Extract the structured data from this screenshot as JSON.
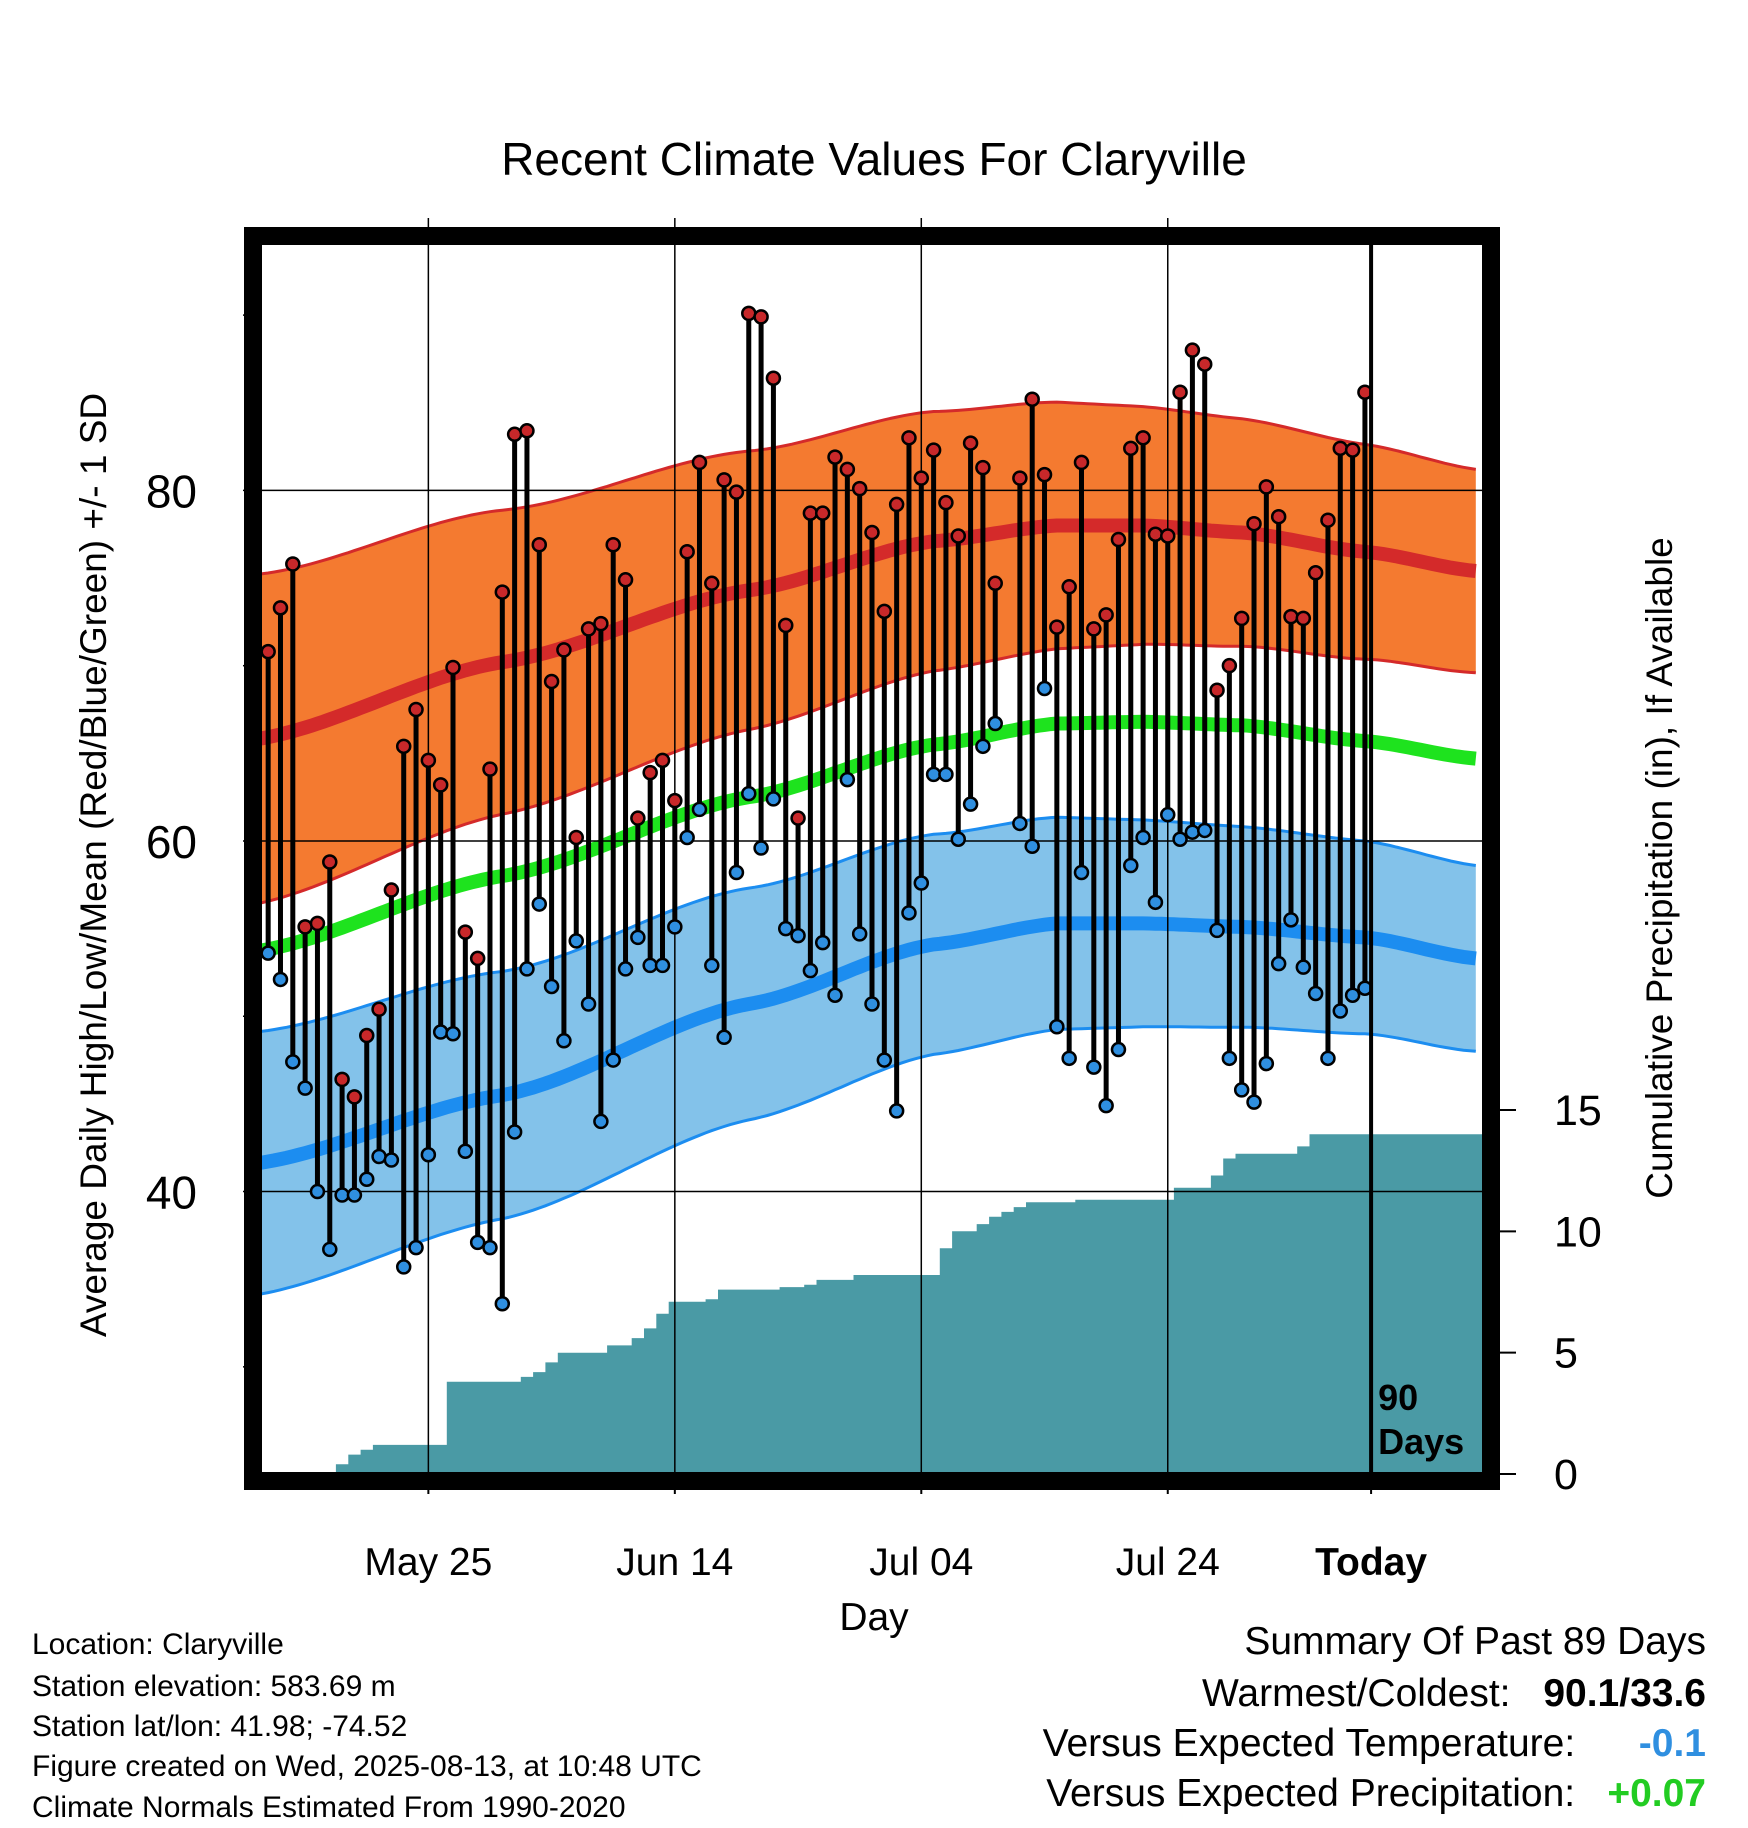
{
  "chart_data": {
    "type": "line",
    "title": "Recent Climate Values For Claryville",
    "xlabel": "Day",
    "ylabel": "Average Daily High/Low/Mean (Red/Blue/Green) +/- 1 SD",
    "y2label": "Cumulative Precipitation (in), If Available",
    "x_tick_labels": [
      "May 25",
      "Jun 14",
      "Jul 04",
      "Jul 24",
      "Today"
    ],
    "y_tick_labels": [
      "40",
      "60",
      "80"
    ],
    "y2_tick_labels": [
      "0",
      "5",
      "10",
      "15"
    ],
    "ylim": [
      24,
      94
    ],
    "y2lim": [
      0,
      48
    ],
    "today_label": "90\nDays",
    "x_start": "2025-05-14",
    "days_shown": 100,
    "today_index": 90,
    "colors": {
      "high_band": "#f47a30",
      "high_band_edge": "#d42a2a",
      "high_mean": "#d42a2a",
      "low_band": "#83c2ea",
      "low_band_edge": "#1c8df0",
      "low_mean": "#1c8df0",
      "mean": "#1ee31e",
      "precip": "#4a9aa5",
      "high_dot": "#c8282a",
      "low_dot": "#2f8fe0"
    },
    "normal_high_anchors": [
      [
        0,
        65.8
      ],
      [
        20,
        70.2
      ],
      [
        40,
        74.3
      ],
      [
        55,
        77.1
      ],
      [
        65,
        78.0
      ],
      [
        72,
        78.0
      ],
      [
        80,
        77.6
      ],
      [
        90,
        76.5
      ],
      [
        99,
        75.4
      ]
    ],
    "normal_mean_anchors": [
      [
        0,
        53.7
      ],
      [
        20,
        58.0
      ],
      [
        40,
        62.5
      ],
      [
        55,
        65.5
      ],
      [
        65,
        66.7
      ],
      [
        72,
        66.8
      ],
      [
        80,
        66.6
      ],
      [
        90,
        65.7
      ],
      [
        99,
        64.7
      ]
    ],
    "normal_low_anchors": [
      [
        0,
        41.6
      ],
      [
        20,
        45.5
      ],
      [
        40,
        50.7
      ],
      [
        55,
        54.1
      ],
      [
        65,
        55.3
      ],
      [
        72,
        55.3
      ],
      [
        80,
        55.1
      ],
      [
        90,
        54.5
      ],
      [
        99,
        53.3
      ]
    ],
    "sd_high": [
      [
        0,
        9.4
      ],
      [
        99,
        5.8
      ]
    ],
    "sd_low": [
      [
        0,
        7.5
      ],
      [
        99,
        5.3
      ]
    ],
    "observed": {
      "highs": [
        70.8,
        73.3,
        75.8,
        55.1,
        55.3,
        58.8,
        46.4,
        45.4,
        48.9,
        50.4,
        57.2,
        65.4,
        67.5,
        64.6,
        63.2,
        69.9,
        54.8,
        53.3,
        64.1,
        74.2,
        83.2,
        83.4,
        76.9,
        69.1,
        70.9,
        60.2,
        72.1,
        72.4,
        76.9,
        74.9,
        61.3,
        63.9,
        64.6,
        62.3,
        76.5,
        81.6,
        74.7,
        80.6,
        79.9,
        90.1,
        89.9,
        86.4,
        72.3,
        61.3,
        78.7,
        78.7,
        81.9,
        81.2,
        80.1,
        77.6,
        73.1,
        79.2,
        83.0,
        80.7,
        82.3,
        79.3,
        77.4,
        82.7,
        81.3,
        74.7,
        null,
        80.7,
        85.2,
        80.9,
        72.2,
        74.5,
        81.6,
        72.1,
        72.9,
        77.2,
        82.4,
        83.0,
        77.5,
        77.4,
        85.6,
        88.0,
        87.2,
        68.6,
        70.0,
        72.7,
        78.1,
        80.2,
        78.5,
        72.8,
        72.7,
        75.3,
        78.3,
        82.4,
        82.3,
        85.6
      ],
      "lows": [
        53.6,
        52.1,
        47.4,
        45.9,
        40.0,
        36.7,
        39.8,
        39.8,
        40.7,
        42.0,
        41.8,
        35.7,
        36.8,
        42.1,
        49.1,
        49.0,
        42.3,
        37.1,
        36.8,
        33.6,
        43.4,
        52.7,
        56.4,
        51.7,
        48.6,
        54.3,
        50.7,
        44.0,
        47.5,
        52.7,
        54.5,
        52.9,
        52.9,
        55.1,
        60.2,
        61.8,
        52.9,
        48.8,
        58.2,
        62.7,
        59.6,
        62.4,
        55.0,
        54.6,
        52.6,
        54.2,
        51.2,
        63.5,
        54.7,
        50.7,
        47.5,
        44.6,
        55.9,
        57.6,
        63.8,
        63.8,
        60.1,
        62.1,
        65.4,
        66.7,
        null,
        61.0,
        59.7,
        68.7,
        49.4,
        47.6,
        58.2,
        47.1,
        44.9,
        48.1,
        58.6,
        60.2,
        56.5,
        61.5,
        60.1,
        60.5,
        60.6,
        54.9,
        47.6,
        45.8,
        45.1,
        47.3,
        53.0,
        55.5,
        52.8,
        51.3,
        47.6,
        50.3,
        51.2,
        51.6
      ]
    },
    "precip_cumulative": [
      0,
      0,
      0,
      0,
      0,
      0,
      0,
      0.4,
      0.8,
      1.0,
      1.2,
      1.2,
      1.2,
      1.2,
      1.2,
      1.2,
      3.8,
      3.8,
      3.8,
      3.8,
      3.8,
      3.8,
      4.0,
      4.2,
      4.6,
      5.0,
      5.0,
      5.0,
      5.0,
      5.3,
      5.3,
      5.6,
      6.0,
      6.6,
      7.1,
      7.1,
      7.1,
      7.2,
      7.6,
      7.6,
      7.6,
      7.6,
      7.6,
      7.7,
      7.7,
      7.8,
      8.0,
      8.0,
      8.0,
      8.2,
      8.2,
      8.2,
      8.2,
      8.2,
      8.2,
      8.2,
      9.3,
      10.0,
      10.0,
      10.3,
      10.6,
      10.8,
      11.0,
      11.2,
      11.2,
      11.2,
      11.2,
      11.3,
      11.3,
      11.3,
      11.3,
      11.3,
      11.3,
      11.3,
      11.3,
      11.8,
      11.8,
      11.8,
      12.3,
      13.0,
      13.2,
      13.2,
      13.2,
      13.2,
      13.2,
      13.5,
      14.0,
      14.0,
      14.0,
      14.0,
      14.0,
      14.0,
      14.0,
      14.0,
      14.0,
      14.0,
      14.0,
      14.0,
      14.0,
      14.0
    ]
  },
  "footer": {
    "location": "Location: Claryville",
    "elevation": "Station elevation: 583.69 m",
    "latlon": "Station lat/lon: 41.98; -74.52",
    "created": "Figure created on Wed, 2025-08-13, at 10:48 UTC",
    "normals": "Climate Normals Estimated From 1990-2020"
  },
  "summary": {
    "heading": "Summary Of Past 89 Days",
    "warm_cold_label": "Warmest/Coldest:",
    "warm_cold_value": "90.1/33.6",
    "temp_label": "Versus Expected Temperature:",
    "temp_value": "-0.1",
    "temp_value_color": "#2f8fe0",
    "precip_label": "Versus Expected Precipitation:",
    "precip_value": "+0.07",
    "precip_value_color": "#22cc22"
  }
}
